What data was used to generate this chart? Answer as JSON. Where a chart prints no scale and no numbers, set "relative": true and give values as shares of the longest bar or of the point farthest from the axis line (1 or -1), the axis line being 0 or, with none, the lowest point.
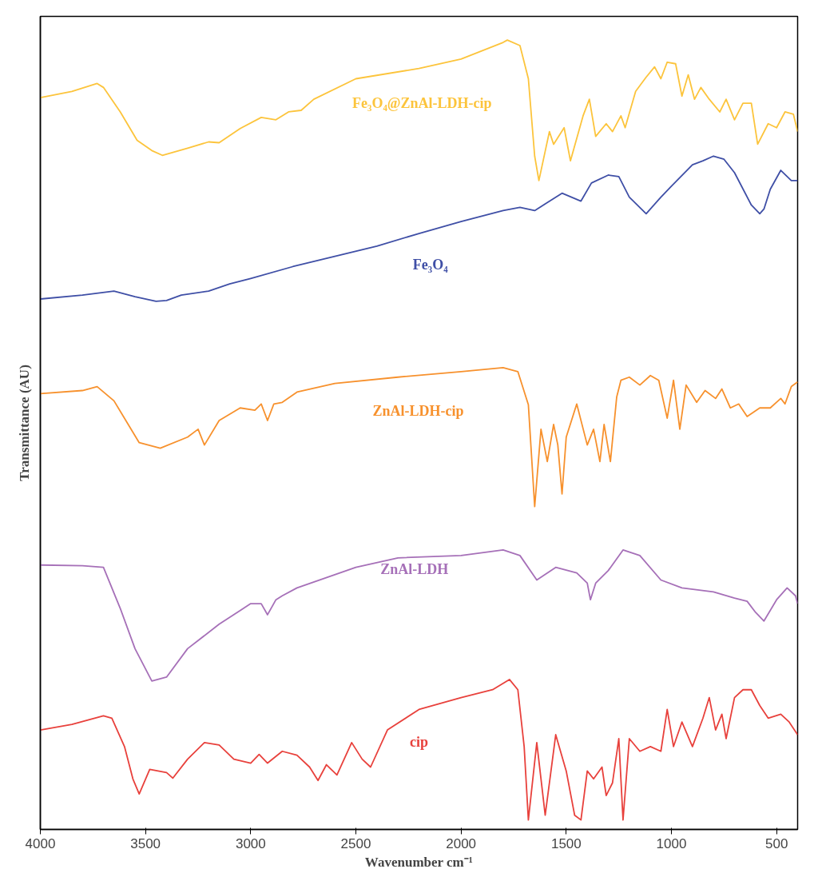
{
  "chart_data": {
    "type": "line",
    "relative": true,
    "xlabel": "Wavenumber cm⁻¹",
    "ylabel": "Transmittance (AU)",
    "xlim": [
      4000,
      400
    ],
    "xticks": [
      4000,
      3500,
      3000,
      2500,
      2000,
      1500,
      1000,
      500
    ],
    "grid": false,
    "line_style": "solid",
    "marker": "none",
    "series": [
      {
        "name": "Fe₃O₄@ZnAl-LDH-cip",
        "color": "#fcc43c",
        "x": [
          4000,
          3850,
          3730,
          3700,
          3620,
          3540,
          3470,
          3420,
          3300,
          3200,
          3150,
          3050,
          2950,
          2880,
          2820,
          2760,
          2700,
          2500,
          2200,
          2000,
          1800,
          1780,
          1720,
          1680,
          1650,
          1630,
          1580,
          1560,
          1510,
          1480,
          1420,
          1390,
          1360,
          1310,
          1280,
          1240,
          1220,
          1170,
          1120,
          1080,
          1050,
          1020,
          980,
          950,
          920,
          890,
          860,
          820,
          770,
          740,
          700,
          660,
          620,
          590,
          540,
          500,
          460,
          420,
          400
        ],
        "values": [
          0.927,
          0.935,
          0.945,
          0.94,
          0.909,
          0.873,
          0.86,
          0.854,
          0.863,
          0.871,
          0.87,
          0.888,
          0.902,
          0.899,
          0.909,
          0.911,
          0.925,
          0.951,
          0.964,
          0.976,
          0.997,
          1.0,
          0.993,
          0.951,
          0.853,
          0.822,
          0.884,
          0.868,
          0.889,
          0.847,
          0.904,
          0.925,
          0.878,
          0.894,
          0.884,
          0.904,
          0.889,
          0.935,
          0.953,
          0.966,
          0.951,
          0.972,
          0.97,
          0.929,
          0.956,
          0.925,
          0.94,
          0.925,
          0.909,
          0.925,
          0.899,
          0.92,
          0.92,
          0.868,
          0.894,
          0.889,
          0.909,
          0.906,
          0.884
        ]
      },
      {
        "name": "Fe₃O₄",
        "color": "#3f4fa6",
        "x": [
          4000,
          3800,
          3650,
          3550,
          3450,
          3400,
          3330,
          3200,
          3100,
          3000,
          2800,
          2600,
          2400,
          2200,
          2000,
          1800,
          1720,
          1650,
          1520,
          1430,
          1380,
          1300,
          1250,
          1200,
          1120,
          1050,
          1000,
          900,
          850,
          800,
          750,
          700,
          620,
          580,
          560,
          530,
          480,
          430,
          400
        ],
        "values": [
          0.672,
          0.677,
          0.682,
          0.675,
          0.669,
          0.67,
          0.677,
          0.682,
          0.691,
          0.698,
          0.713,
          0.726,
          0.739,
          0.755,
          0.77,
          0.784,
          0.788,
          0.784,
          0.806,
          0.796,
          0.819,
          0.829,
          0.827,
          0.801,
          0.78,
          0.801,
          0.815,
          0.842,
          0.847,
          0.853,
          0.849,
          0.832,
          0.791,
          0.78,
          0.786,
          0.811,
          0.835,
          0.822,
          0.822
        ]
      },
      {
        "name": "ZnAl-LDH-cip",
        "color": "#f7912d",
        "x": [
          4000,
          3800,
          3730,
          3650,
          3530,
          3430,
          3300,
          3250,
          3220,
          3150,
          3050,
          2980,
          2950,
          2920,
          2890,
          2850,
          2780,
          2600,
          2300,
          2000,
          1800,
          1730,
          1680,
          1650,
          1620,
          1590,
          1560,
          1540,
          1520,
          1500,
          1450,
          1400,
          1370,
          1340,
          1320,
          1290,
          1260,
          1240,
          1200,
          1150,
          1100,
          1060,
          1020,
          990,
          960,
          930,
          880,
          840,
          790,
          760,
          720,
          680,
          640,
          580,
          530,
          480,
          460,
          430,
          400
        ],
        "values": [
          0.552,
          0.556,
          0.561,
          0.543,
          0.49,
          0.483,
          0.497,
          0.507,
          0.487,
          0.518,
          0.534,
          0.531,
          0.539,
          0.518,
          0.539,
          0.541,
          0.554,
          0.565,
          0.573,
          0.58,
          0.585,
          0.58,
          0.538,
          0.409,
          0.507,
          0.466,
          0.513,
          0.487,
          0.425,
          0.497,
          0.539,
          0.487,
          0.507,
          0.466,
          0.513,
          0.466,
          0.548,
          0.569,
          0.573,
          0.563,
          0.575,
          0.569,
          0.521,
          0.569,
          0.507,
          0.563,
          0.541,
          0.556,
          0.546,
          0.558,
          0.534,
          0.539,
          0.523,
          0.534,
          0.534,
          0.546,
          0.539,
          0.561,
          0.567
        ]
      },
      {
        "name": "ZnAl-LDH",
        "color": "#a670b8",
        "x": [
          4000,
          3800,
          3700,
          3620,
          3550,
          3470,
          3400,
          3300,
          3150,
          3000,
          2950,
          2920,
          2880,
          2850,
          2780,
          2500,
          2300,
          2000,
          1800,
          1720,
          1640,
          1550,
          1450,
          1400,
          1385,
          1360,
          1300,
          1230,
          1150,
          1050,
          950,
          800,
          700,
          640,
          600,
          560,
          500,
          450,
          410,
          400
        ],
        "values": [
          0.335,
          0.334,
          0.332,
          0.28,
          0.229,
          0.188,
          0.193,
          0.229,
          0.26,
          0.286,
          0.286,
          0.272,
          0.291,
          0.296,
          0.306,
          0.332,
          0.344,
          0.347,
          0.354,
          0.347,
          0.316,
          0.332,
          0.325,
          0.312,
          0.291,
          0.312,
          0.328,
          0.354,
          0.347,
          0.316,
          0.306,
          0.301,
          0.293,
          0.289,
          0.275,
          0.264,
          0.291,
          0.306,
          0.296,
          0.286
        ]
      },
      {
        "name": "cip",
        "color": "#e8413c",
        "x": [
          4000,
          3850,
          3700,
          3660,
          3600,
          3560,
          3530,
          3480,
          3400,
          3370,
          3300,
          3220,
          3150,
          3080,
          3000,
          2960,
          2920,
          2850,
          2780,
          2720,
          2680,
          2640,
          2590,
          2520,
          2470,
          2430,
          2350,
          2200,
          2000,
          1850,
          1770,
          1730,
          1700,
          1680,
          1640,
          1600,
          1550,
          1500,
          1460,
          1430,
          1400,
          1370,
          1330,
          1310,
          1280,
          1250,
          1230,
          1200,
          1150,
          1100,
          1050,
          1020,
          990,
          950,
          900,
          850,
          820,
          790,
          760,
          740,
          700,
          660,
          620,
          580,
          540,
          480,
          440,
          400
        ],
        "values": [
          0.126,
          0.133,
          0.144,
          0.141,
          0.105,
          0.064,
          0.045,
          0.076,
          0.072,
          0.065,
          0.089,
          0.11,
          0.107,
          0.089,
          0.084,
          0.095,
          0.084,
          0.099,
          0.094,
          0.079,
          0.062,
          0.082,
          0.069,
          0.11,
          0.089,
          0.079,
          0.126,
          0.152,
          0.167,
          0.177,
          0.19,
          0.177,
          0.105,
          0.012,
          0.11,
          0.018,
          0.12,
          0.074,
          0.018,
          0.012,
          0.074,
          0.064,
          0.079,
          0.043,
          0.059,
          0.115,
          0.012,
          0.115,
          0.099,
          0.105,
          0.099,
          0.152,
          0.105,
          0.136,
          0.105,
          0.141,
          0.167,
          0.126,
          0.146,
          0.115,
          0.167,
          0.177,
          0.177,
          0.157,
          0.141,
          0.146,
          0.136,
          0.12
        ]
      }
    ]
  }
}
